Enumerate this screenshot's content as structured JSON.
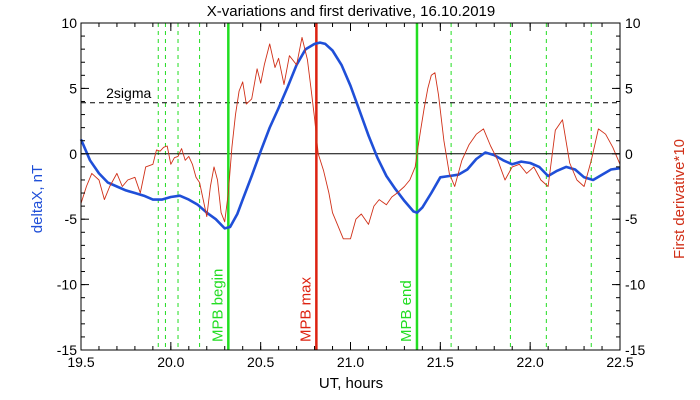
{
  "chart_data": {
    "type": "line",
    "title": "X-variations and first derivative, 16.10.2019",
    "xlabel": "UT, hours",
    "ylabel_left": "deltaX, nT",
    "ylabel_right": "First derivative*10",
    "xlim": [
      19.5,
      22.5
    ],
    "ylim_left": [
      -15,
      10
    ],
    "ylim_right": [
      -15,
      10
    ],
    "x_ticks": [
      19.5,
      20.0,
      20.5,
      21.0,
      21.5,
      22.0,
      22.5
    ],
    "x_tick_labels": [
      "19.5",
      "20.0",
      "20.5",
      "21.0",
      "21.5",
      "22.0",
      "22.5"
    ],
    "y_ticks": [
      10,
      5,
      0,
      -5,
      -10,
      -15
    ],
    "y_tick_labels": [
      "10",
      "5",
      "0",
      "-5",
      "-10",
      "-15"
    ],
    "grid": false,
    "colors": {
      "deltaX": "#1f4fd8",
      "derivative": "#d03018",
      "mpb": "#22dd22",
      "mpb_max": "#dd2211",
      "reference": "#000000"
    },
    "reference_lines": [
      {
        "y": 0,
        "style": "solid",
        "label": ""
      },
      {
        "y": 3.9,
        "style": "dashed",
        "label": "2sigma"
      }
    ],
    "dashed_vlines": [
      19.93,
      19.97,
      20.04,
      20.16,
      21.56,
      21.89,
      22.09,
      22.34
    ],
    "markers": [
      {
        "label": "MPB begin",
        "x": 20.32,
        "color": "#22dd22"
      },
      {
        "label": "MPB max",
        "x": 20.81,
        "color": "#dd2211"
      },
      {
        "label": "MPB end",
        "x": 21.37,
        "color": "#22dd22"
      }
    ],
    "series": [
      {
        "name": "deltaX, nT",
        "axis": "left",
        "x": [
          19.5,
          19.55,
          19.6,
          19.65,
          19.7,
          19.75,
          19.8,
          19.85,
          19.9,
          19.95,
          20.0,
          20.05,
          20.1,
          20.15,
          20.2,
          20.25,
          20.3,
          20.33,
          20.37,
          20.4,
          20.45,
          20.5,
          20.55,
          20.6,
          20.65,
          20.7,
          20.75,
          20.8,
          20.83,
          20.86,
          20.9,
          20.95,
          21.0,
          21.05,
          21.1,
          21.15,
          21.2,
          21.25,
          21.3,
          21.35,
          21.37,
          21.4,
          21.45,
          21.5,
          21.55,
          21.6,
          21.65,
          21.7,
          21.75,
          21.8,
          21.85,
          21.9,
          21.95,
          22.0,
          22.05,
          22.1,
          22.15,
          22.2,
          22.25,
          22.3,
          22.35,
          22.4,
          22.45,
          22.5
        ],
        "values": [
          1.1,
          -0.5,
          -1.5,
          -2.2,
          -2.5,
          -2.8,
          -3.0,
          -3.2,
          -3.5,
          -3.5,
          -3.3,
          -3.2,
          -3.5,
          -3.9,
          -4.5,
          -5.0,
          -5.7,
          -5.6,
          -4.6,
          -3.5,
          -1.7,
          0.2,
          2.0,
          3.5,
          5.1,
          6.8,
          8.0,
          8.4,
          8.5,
          8.4,
          7.9,
          6.8,
          5.2,
          3.3,
          1.4,
          -0.3,
          -1.7,
          -2.7,
          -3.6,
          -4.4,
          -4.5,
          -4.1,
          -3.0,
          -1.8,
          -1.7,
          -1.6,
          -1.2,
          -0.4,
          0.1,
          -0.1,
          -0.5,
          -0.8,
          -0.6,
          -0.7,
          -1.0,
          -1.7,
          -1.3,
          -1.0,
          -1.2,
          -1.8,
          -2.0,
          -1.6,
          -1.2,
          -1.1
        ]
      },
      {
        "name": "First derivative*10",
        "axis": "right",
        "x": [
          19.5,
          19.53,
          19.56,
          19.6,
          19.63,
          19.66,
          19.7,
          19.73,
          19.76,
          19.8,
          19.83,
          19.86,
          19.9,
          19.92,
          19.94,
          19.96,
          19.98,
          20.0,
          20.02,
          20.04,
          20.06,
          20.08,
          20.1,
          20.12,
          20.14,
          20.16,
          20.18,
          20.2,
          20.22,
          20.24,
          20.26,
          20.28,
          20.3,
          20.32,
          20.34,
          20.36,
          20.38,
          20.4,
          20.42,
          20.45,
          20.48,
          20.5,
          20.52,
          20.55,
          20.58,
          20.6,
          20.63,
          20.66,
          20.7,
          20.73,
          20.76,
          20.78,
          20.8,
          20.82,
          20.85,
          20.88,
          20.9,
          20.93,
          20.96,
          21.0,
          21.03,
          21.06,
          21.1,
          21.13,
          21.16,
          21.2,
          21.23,
          21.26,
          21.3,
          21.33,
          21.36,
          21.37,
          21.39,
          21.41,
          21.43,
          21.45,
          21.47,
          21.49,
          21.52,
          21.55,
          21.58,
          21.62,
          21.66,
          21.7,
          21.74,
          21.78,
          21.82,
          21.86,
          21.9,
          21.94,
          21.98,
          22.02,
          22.06,
          22.1,
          22.14,
          22.18,
          22.22,
          22.26,
          22.3,
          22.34,
          22.38,
          22.42,
          22.46,
          22.5
        ],
        "values": [
          -3.8,
          -2.5,
          -1.5,
          -2.0,
          -3.5,
          -2.5,
          -1.5,
          -2.5,
          -2.0,
          -1.8,
          -3.0,
          -1.0,
          -0.8,
          0.3,
          0.2,
          0.5,
          0.6,
          -0.8,
          -0.3,
          -0.2,
          0.4,
          -0.5,
          -0.2,
          -0.8,
          -1.8,
          -2.2,
          -3.5,
          -4.8,
          -2.5,
          -1.0,
          -2.0,
          -4.5,
          -5.2,
          -3.0,
          0.5,
          3.0,
          4.8,
          5.5,
          3.8,
          4.2,
          6.5,
          5.4,
          6.8,
          8.4,
          6.6,
          7.3,
          5.3,
          7.5,
          6.8,
          8.9,
          7.2,
          5.0,
          2.7,
          0.0,
          -1.3,
          -3.0,
          -4.5,
          -5.5,
          -6.5,
          -6.5,
          -5.0,
          -4.6,
          -5.4,
          -4.0,
          -3.5,
          -3.9,
          -3.3,
          -3.0,
          -2.5,
          -2.0,
          -1.0,
          0.0,
          1.8,
          3.5,
          5.0,
          6.0,
          6.2,
          4.5,
          1.0,
          -1.5,
          -2.5,
          -0.5,
          0.7,
          1.5,
          1.9,
          0.6,
          -0.5,
          -2.0,
          -1.0,
          -0.8,
          -1.5,
          -1.0,
          -2.0,
          -2.5,
          1.8,
          2.6,
          -0.7,
          -2.0,
          -2.5,
          -0.5,
          1.9,
          1.5,
          0.5,
          -0.8
        ]
      }
    ]
  }
}
